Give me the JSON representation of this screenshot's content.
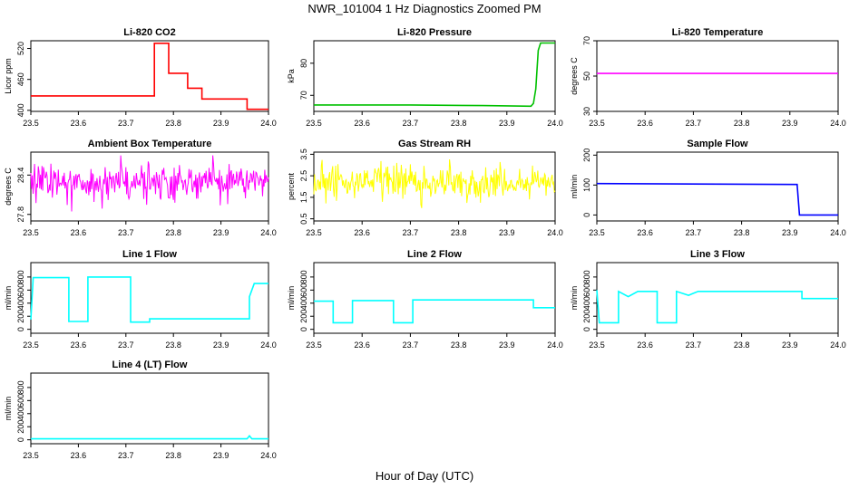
{
  "figure": {
    "title": "NWR_101004  1 Hz Diagnostics Zoomed PM",
    "xlabel": "Hour of Day (UTC)"
  },
  "chart_data": [
    {
      "id": "co2",
      "type": "line",
      "title": "Li-820 CO2",
      "ylabel": "Licor ppm",
      "xlim": [
        23.5,
        24.0
      ],
      "ylim": [
        398,
        535
      ],
      "yticks": [
        400,
        460,
        520
      ],
      "xticks": [
        23.5,
        23.6,
        23.7,
        23.8,
        23.9,
        24.0
      ],
      "color": "#ff0000",
      "series": [
        {
          "name": "CO2",
          "style": "steps",
          "x": [
            23.5,
            23.6,
            23.76,
            23.76,
            23.79,
            23.79,
            23.83,
            23.83,
            23.86,
            23.86,
            23.955,
            23.955,
            24.0
          ],
          "y": [
            428,
            428,
            428,
            530,
            530,
            472,
            472,
            443,
            443,
            422,
            422,
            402,
            402
          ]
        }
      ]
    },
    {
      "id": "pressure",
      "type": "line",
      "title": "Li-820 Pressure",
      "ylabel": "kPa",
      "xlim": [
        23.5,
        24.0
      ],
      "ylim": [
        65,
        87
      ],
      "yticks": [
        70,
        80
      ],
      "xticks": [
        23.5,
        23.6,
        23.7,
        23.8,
        23.9,
        24.0
      ],
      "color": "#00c000",
      "series": [
        {
          "name": "Pressure",
          "x": [
            23.5,
            23.7,
            23.85,
            23.95,
            23.955,
            23.96,
            23.965,
            23.97,
            24.0
          ],
          "y": [
            67.0,
            67.0,
            66.8,
            66.6,
            67.5,
            72,
            84,
            86.3,
            86.3
          ]
        }
      ]
    },
    {
      "id": "temperature",
      "type": "line",
      "title": "Li-820 Temperature",
      "ylabel": "degrees C",
      "xlim": [
        23.5,
        24.0
      ],
      "ylim": [
        30,
        70
      ],
      "yticks": [
        30,
        50,
        70
      ],
      "xticks": [
        23.5,
        23.6,
        23.7,
        23.8,
        23.9,
        24.0
      ],
      "color": "#ff00ff",
      "series": [
        {
          "name": "Temperature",
          "x": [
            23.5,
            24.0
          ],
          "y": [
            51.5,
            51.5
          ]
        }
      ]
    },
    {
      "id": "boxtemp",
      "type": "line",
      "title": "Ambient Box Temperature",
      "ylabel": "degrees C",
      "xlim": [
        23.5,
        24.0
      ],
      "ylim": [
        27.7,
        28.75
      ],
      "yticks": [
        27.8,
        28.4
      ],
      "xticks": [
        23.5,
        23.6,
        23.7,
        23.8,
        23.9,
        24.0
      ],
      "color": "#ff00ff",
      "series": [
        {
          "name": "Box temperature",
          "noise": true,
          "center": 28.3,
          "spread": 0.2,
          "low": 27.75,
          "high": 28.7,
          "x": [
            23.5,
            24.0
          ],
          "y": [
            28.3,
            28.3
          ]
        }
      ]
    },
    {
      "id": "rh",
      "type": "line",
      "title": "Gas Stream RH",
      "ylabel": "percent",
      "xlim": [
        23.5,
        24.0
      ],
      "ylim": [
        0.4,
        3.6
      ],
      "yticks": [
        0.5,
        1.5,
        2.5,
        3.5
      ],
      "xticks": [
        23.5,
        23.6,
        23.7,
        23.8,
        23.9,
        24.0
      ],
      "color": "#ffff00",
      "series": [
        {
          "name": "RH",
          "noise": true,
          "center": 2.2,
          "spread": 0.55,
          "low": 0.5,
          "high": 3.4,
          "x": [
            23.5,
            24.0
          ],
          "y": [
            2.2,
            2.2
          ]
        }
      ]
    },
    {
      "id": "sampleflow",
      "type": "line",
      "title": "Sample Flow",
      "ylabel": "ml/min",
      "xlim": [
        23.5,
        24.0
      ],
      "ylim": [
        -20,
        210
      ],
      "yticks": [
        0,
        100,
        200
      ],
      "xticks": [
        23.5,
        23.6,
        23.7,
        23.8,
        23.9,
        24.0
      ],
      "color": "#0000ff",
      "series": [
        {
          "name": "Sample flow",
          "x": [
            23.5,
            23.915,
            23.915,
            23.92,
            24.0
          ],
          "y": [
            105,
            102,
            102,
            0,
            0
          ]
        }
      ]
    },
    {
      "id": "line1",
      "type": "line",
      "title": "Line 1 Flow",
      "ylabel": "ml/min",
      "xlim": [
        23.5,
        24.0
      ],
      "ylim": [
        -60,
        1020
      ],
      "yticks": [
        0,
        200,
        400,
        600,
        800
      ],
      "xticks": [
        23.5,
        23.6,
        23.7,
        23.8,
        23.9,
        24.0
      ],
      "color": "#00ffff",
      "series": [
        {
          "name": "Line 1 flow",
          "x": [
            23.5,
            23.5,
            23.505,
            23.58,
            23.58,
            23.62,
            23.62,
            23.71,
            23.71,
            23.75,
            23.75,
            23.96,
            23.96,
            23.97,
            24.0
          ],
          "y": [
            150,
            150,
            790,
            790,
            120,
            120,
            800,
            800,
            110,
            110,
            160,
            160,
            500,
            700,
            700
          ]
        }
      ]
    },
    {
      "id": "line2",
      "type": "line",
      "title": "Line 2 Flow",
      "ylabel": "ml/min",
      "xlim": [
        23.5,
        24.0
      ],
      "ylim": [
        -60,
        1020
      ],
      "yticks": [
        0,
        200,
        400,
        600,
        800
      ],
      "xticks": [
        23.5,
        23.6,
        23.7,
        23.8,
        23.9,
        24.0
      ],
      "color": "#00ffff",
      "series": [
        {
          "name": "Line 2 flow",
          "x": [
            23.5,
            23.54,
            23.54,
            23.58,
            23.58,
            23.665,
            23.665,
            23.705,
            23.705,
            23.955,
            23.955,
            24.0
          ],
          "y": [
            430,
            430,
            100,
            100,
            440,
            440,
            100,
            100,
            450,
            450,
            330,
            330
          ]
        }
      ]
    },
    {
      "id": "line3",
      "type": "line",
      "title": "Line 3 Flow",
      "ylabel": "ml/min",
      "xlim": [
        23.5,
        24.0
      ],
      "ylim": [
        -60,
        1020
      ],
      "yticks": [
        0,
        200,
        400,
        600,
        800
      ],
      "xticks": [
        23.5,
        23.6,
        23.7,
        23.8,
        23.9,
        24.0
      ],
      "color": "#00ffff",
      "series": [
        {
          "name": "Line 3 flow",
          "x": [
            23.5,
            23.5,
            23.505,
            23.545,
            23.545,
            23.565,
            23.585,
            23.625,
            23.625,
            23.665,
            23.665,
            23.69,
            23.71,
            23.925,
            23.925,
            24.0
          ],
          "y": [
            600,
            600,
            100,
            100,
            580,
            500,
            580,
            580,
            100,
            100,
            580,
            520,
            580,
            580,
            470,
            470
          ]
        }
      ]
    },
    {
      "id": "line4",
      "type": "line",
      "title": "Line 4 (LT) Flow",
      "ylabel": "ml/min",
      "xlim": [
        23.5,
        24.0
      ],
      "ylim": [
        -60,
        1020
      ],
      "yticks": [
        0,
        200,
        400,
        600,
        800
      ],
      "xticks": [
        23.5,
        23.6,
        23.7,
        23.8,
        23.9,
        24.0
      ],
      "color": "#00ffff",
      "series": [
        {
          "name": "Line 4 flow",
          "x": [
            23.5,
            23.955,
            23.96,
            23.965,
            24.0
          ],
          "y": [
            15,
            15,
            60,
            15,
            15
          ]
        }
      ]
    }
  ]
}
